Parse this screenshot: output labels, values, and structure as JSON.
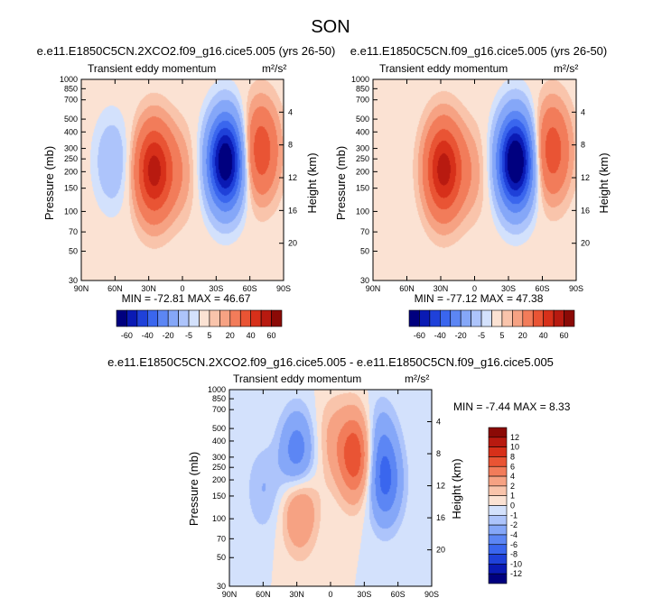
{
  "figure": {
    "season": "SON"
  },
  "colors": {
    "scale": [
      "#00007f",
      "#0a1ab4",
      "#1f41d9",
      "#3a66ee",
      "#5c86f4",
      "#85a7f8",
      "#adc4fb",
      "#d3e1fc",
      "#fbe2d3",
      "#f9c4ab",
      "#f6a283",
      "#f27c5a",
      "#e95434",
      "#d7301a",
      "#b81a10",
      "#8b0a06"
    ]
  },
  "chart_data": [
    {
      "type": "contour",
      "title": "e.e11.E1850C5CN.2XCO2.f09_g16.cice5.005 (yrs 26-50)",
      "field_label": "Transient eddy momentum",
      "units": "m²/s²",
      "xlabel": "",
      "ylabel": "Pressure (mb)",
      "y2label": "Height (km)",
      "x_ticks": [
        "90N",
        "60N",
        "30N",
        "0",
        "30S",
        "60S",
        "90S"
      ],
      "x_range": [
        90,
        -90
      ],
      "y_ticks": [
        "30",
        "50",
        "70",
        "100",
        "150",
        "200",
        "250",
        "300",
        "400",
        "500",
        "700",
        "850",
        "1000"
      ],
      "y_range": [
        1000,
        30
      ],
      "y_scale": "log",
      "y2_ticks": [
        "4",
        "8",
        "12",
        "16",
        "20"
      ],
      "stats": "MIN = -72.81   MAX =  46.67",
      "contour_levels": [
        -60,
        -50,
        -40,
        -30,
        -20,
        -10,
        -5,
        -2,
        2,
        5,
        10,
        20,
        30,
        40,
        50,
        60
      ],
      "colorbar_labels": [
        "-60",
        "-40",
        "-20",
        "-5",
        "5",
        "20",
        "40",
        "60"
      ],
      "features": [
        {
          "lat": 26,
          "pressure": 205,
          "peak": 44
        },
        {
          "lat": -38,
          "pressure": 240,
          "peak": -72
        },
        {
          "lat": -69,
          "pressure": 290,
          "peak": 28
        },
        {
          "lat": 4,
          "pressure": 200,
          "peak": 8
        },
        {
          "lat": 63,
          "pressure": 240,
          "peak": -10
        }
      ]
    },
    {
      "type": "contour",
      "title": "e.e11.E1850C5CN.f09_g16.cice5.005 (yrs 26-50)",
      "field_label": "Transient eddy momentum",
      "units": "m²/s²",
      "xlabel": "",
      "ylabel": "Pressure (mb)",
      "y2label": "Height (km)",
      "x_ticks": [
        "90N",
        "60N",
        "30N",
        "0",
        "30S",
        "60S",
        "90S"
      ],
      "x_range": [
        90,
        -90
      ],
      "y_ticks": [
        "30",
        "50",
        "70",
        "100",
        "150",
        "200",
        "250",
        "300",
        "400",
        "500",
        "700",
        "850",
        "1000"
      ],
      "y_range": [
        1000,
        30
      ],
      "y_scale": "log",
      "y2_ticks": [
        "4",
        "8",
        "12",
        "16",
        "20"
      ],
      "stats": "MIN = -77.12   MAX =  47.38",
      "contour_levels": [
        -60,
        -50,
        -40,
        -30,
        -20,
        -10,
        -5,
        -2,
        2,
        5,
        10,
        20,
        30,
        40,
        50,
        60
      ],
      "colorbar_labels": [
        "-60",
        "-40",
        "-20",
        "-5",
        "5",
        "20",
        "40",
        "60"
      ],
      "features": [
        {
          "lat": 28,
          "pressure": 210,
          "peak": 45
        },
        {
          "lat": -36,
          "pressure": 240,
          "peak": -76
        },
        {
          "lat": -68,
          "pressure": 290,
          "peak": 27
        },
        {
          "lat": 4,
          "pressure": 200,
          "peak": 7
        }
      ]
    },
    {
      "type": "contour",
      "title": "e.e11.E1850C5CN.2XCO2.f09_g16.cice5.005 - e.e11.E1850C5CN.f09_g16.cice5.005",
      "field_label": "Transient eddy momentum",
      "units": "m²/s²",
      "xlabel": "",
      "ylabel": "Pressure (mb)",
      "y2label": "Height (km)",
      "x_ticks": [
        "90N",
        "60N",
        "30N",
        "0",
        "30S",
        "60S",
        "90S"
      ],
      "x_range": [
        90,
        -90
      ],
      "y_ticks": [
        "30",
        "50",
        "70",
        "100",
        "150",
        "200",
        "250",
        "300",
        "400",
        "500",
        "700",
        "850",
        "1000"
      ],
      "y_range": [
        1000,
        30
      ],
      "y_scale": "log",
      "y2_ticks": [
        "4",
        "8",
        "12",
        "16",
        "20"
      ],
      "stats": "MIN = -7.44   MAX =  8.33",
      "contour_levels": [
        -12,
        -10,
        -8,
        -6,
        -4,
        -2,
        -1,
        0,
        1,
        2,
        4,
        6,
        8,
        10,
        12
      ],
      "colorbar_labels": [
        "-12",
        "-10",
        "-8",
        "-6",
        "-4",
        "-2",
        "-1",
        "0",
        "1",
        "2",
        "4",
        "6",
        "8",
        "10",
        "12"
      ],
      "features": [
        {
          "lat": -22,
          "pressure": 310,
          "peak": 8
        },
        {
          "lat": 28,
          "pressure": 125,
          "peak": 5
        },
        {
          "lat": 30,
          "pressure": 310,
          "peak": -6
        },
        {
          "lat": -48,
          "pressure": 190,
          "peak": -6
        },
        {
          "lat": -43,
          "pressure": 400,
          "peak": -3
        },
        {
          "lat": 0,
          "pressure": 420,
          "peak": 2
        },
        {
          "lat": 60,
          "pressure": 170,
          "peak": -2
        }
      ]
    }
  ]
}
